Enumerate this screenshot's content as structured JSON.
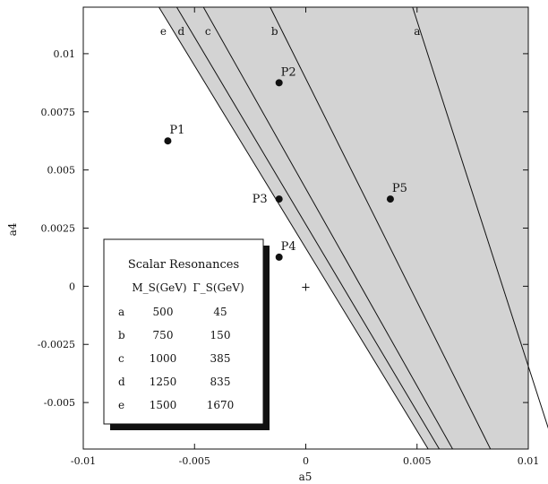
{
  "chart_data": {
    "type": "scatter",
    "xlabel": "a5",
    "ylabel": "a4",
    "xlim": [
      -0.01,
      0.01
    ],
    "ylim": [
      -0.007,
      0.012
    ],
    "x_ticks": [
      {
        "value": -0.01,
        "label": "-0.01"
      },
      {
        "value": -0.005,
        "label": "-0.005"
      },
      {
        "value": 0,
        "label": "0"
      },
      {
        "value": 0.005,
        "label": "0.005"
      },
      {
        "value": 0.01,
        "label": "0.01"
      }
    ],
    "y_ticks": [
      {
        "value": -0.005,
        "label": "-0.005"
      },
      {
        "value": -0.0025,
        "label": "-0.0025"
      },
      {
        "value": 0,
        "label": "0"
      },
      {
        "value": 0.0025,
        "label": "0.0025"
      },
      {
        "value": 0.005,
        "label": "0.005"
      },
      {
        "value": 0.0075,
        "label": "0.0075"
      },
      {
        "value": 0.01,
        "label": "0.01"
      }
    ],
    "points": [
      {
        "label": "P1",
        "x": -0.0062,
        "y": 0.00625
      },
      {
        "label": "P2",
        "x": -0.0012,
        "y": 0.00875
      },
      {
        "label": "P3",
        "x": -0.0012,
        "y": 0.00375
      },
      {
        "label": "P4",
        "x": -0.0012,
        "y": 0.00125
      },
      {
        "label": "P5",
        "x": 0.0038,
        "y": 0.00375
      }
    ],
    "origin_marker": {
      "label": "+",
      "x": 0.0,
      "y": 0.0
    },
    "shaded_region_color": "#d3d3d3",
    "curves": [
      {
        "name": "a",
        "top_x": 0.0048,
        "bottom_x": 0.0112
      },
      {
        "name": "b",
        "top_x": -0.0016,
        "bottom_x": 0.0083
      },
      {
        "name": "c",
        "top_x": -0.0046,
        "bottom_x": 0.0066
      },
      {
        "name": "d",
        "top_x": -0.0058,
        "bottom_x": 0.006
      },
      {
        "name": "e",
        "top_x": -0.0066,
        "bottom_x": 0.0055
      }
    ],
    "legend": {
      "title": "Scalar Resonances",
      "columns": [
        "M_S(GeV)",
        "Γ_S(GeV)"
      ],
      "rows": [
        {
          "name": "a",
          "mass": "500",
          "width": "45"
        },
        {
          "name": "b",
          "mass": "750",
          "width": "150"
        },
        {
          "name": "c",
          "mass": "1000",
          "width": "385"
        },
        {
          "name": "d",
          "mass": "1250",
          "width": "835"
        },
        {
          "name": "e",
          "mass": "1500",
          "width": "1670"
        }
      ]
    }
  }
}
